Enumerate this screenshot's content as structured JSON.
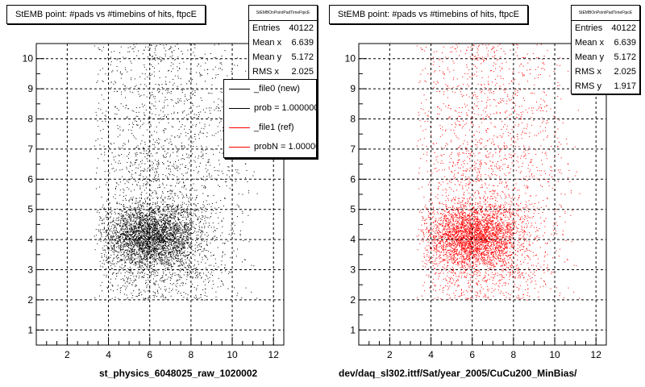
{
  "footer_text": "",
  "panels": [
    {
      "title": "StEMB point: #pads vs #timebins of hits, ftpcE",
      "xlabel": "st_physics_6048025_raw_1020002",
      "marker_color": "#000000",
      "stats": {
        "name": "StEMBOnPointPadTimeFtpcE",
        "rows": [
          {
            "label": "Entries",
            "value": "40122"
          },
          {
            "label": "Mean x",
            "value": "6.639"
          },
          {
            "label": "Mean y",
            "value": "5.172"
          },
          {
            "label": "RMS x",
            "value": "2.025"
          }
        ]
      },
      "legend": [
        {
          "label": "_file0 (new)",
          "color": "#000000"
        },
        {
          "label": "prob = 1.000000",
          "color": "#000000"
        },
        {
          "label": "_file1 (ref)",
          "color": "#ff0000"
        },
        {
          "label": "probN = 1.000000",
          "color": "#ff0000"
        }
      ]
    },
    {
      "title": "StEMB point: #pads vs #timebins of hits, ftpcE",
      "xlabel": "dev/daq_sl302.ittf/Sat/year_2005/CuCu200_MinBias/",
      "marker_color": "#ff0000",
      "stats": {
        "name": "StEMBOnPointPadTimeFtpcE",
        "rows": [
          {
            "label": "Entries",
            "value": "40122"
          },
          {
            "label": "Mean x",
            "value": "6.639"
          },
          {
            "label": "Mean y",
            "value": "5.172"
          },
          {
            "label": "RMS x",
            "value": "2.025"
          },
          {
            "label": "RMS y",
            "value": "1.917"
          }
        ]
      }
    }
  ],
  "chart_data": [
    {
      "type": "scatter",
      "title": "StEMB point: #pads vs #timebins of hits, ftpcE",
      "xlabel": "st_physics_6048025_raw_1020002",
      "ylabel": "",
      "xlim": [
        0.5,
        12.5
      ],
      "ylim": [
        0.5,
        10.5
      ],
      "xticks": [
        2,
        4,
        6,
        8,
        10,
        12
      ],
      "yticks": [
        1,
        2,
        3,
        4,
        5,
        6,
        7,
        8,
        9,
        10
      ],
      "grid": true,
      "entries": 40122,
      "mean_x": 6.639,
      "mean_y": 5.172,
      "rms_x": 2.025,
      "marker_color": "#000000",
      "legend_position": "top-right"
    },
    {
      "type": "scatter",
      "title": "StEMB point: #pads vs #timebins of hits, ftpcE",
      "xlabel": "dev/daq_sl302.ittf/Sat/year_2005/CuCu200_MinBias/",
      "ylabel": "",
      "xlim": [
        0.5,
        12.5
      ],
      "ylim": [
        0.5,
        10.5
      ],
      "xticks": [
        2,
        4,
        6,
        8,
        10,
        12
      ],
      "yticks": [
        1,
        2,
        3,
        4,
        5,
        6,
        7,
        8,
        9,
        10
      ],
      "grid": true,
      "entries": 40122,
      "mean_x": 6.639,
      "mean_y": 5.172,
      "rms_x": 2.025,
      "rms_y": 1.917,
      "marker_color": "#ff0000"
    }
  ]
}
